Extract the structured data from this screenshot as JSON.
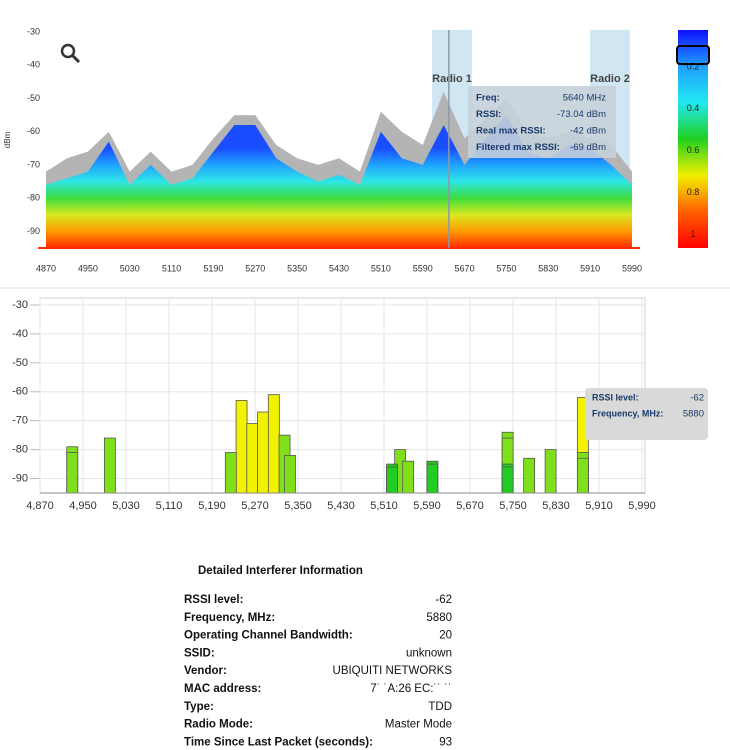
{
  "chart_data": [
    {
      "type": "area",
      "y_label": "dBm",
      "x": [
        4870,
        4910,
        4950,
        4990,
        5030,
        5070,
        5110,
        5150,
        5190,
        5230,
        5270,
        5310,
        5350,
        5390,
        5430,
        5470,
        5510,
        5550,
        5590,
        5630,
        5670,
        5710,
        5750,
        5790,
        5830,
        5870,
        5910,
        5950,
        5990
      ],
      "series": [
        {
          "color": "#b4b4b4",
          "values": [
            -72,
            -68,
            -66,
            -60,
            -72,
            -66,
            -72,
            -70,
            -62,
            -55,
            -55,
            -64,
            -68,
            -70,
            -68,
            -72,
            -54,
            -60,
            -64,
            -48,
            -62,
            -56,
            -50,
            -60,
            -62,
            -60,
            -62,
            -64,
            -72
          ]
        },
        {
          "colors": [
            "#1a4dff",
            "#1fa3ff",
            "#2ee6e6",
            "#3ddc3d",
            "#d8e820",
            "#ff9a00",
            "#ff2a00"
          ],
          "values": [
            -76,
            -74,
            -72,
            -63,
            -76,
            -70,
            -76,
            -74,
            -66,
            -58,
            -58,
            -68,
            -72,
            -75,
            -73,
            -76,
            -60,
            -68,
            -70,
            -58,
            -70,
            -62,
            -55,
            -66,
            -68,
            -64,
            -65,
            -70,
            -76
          ]
        }
      ],
      "xlim": [
        4870,
        5990
      ],
      "ylim": [
        -95,
        -30
      ],
      "xticks": [
        4870,
        4950,
        5030,
        5110,
        5190,
        5270,
        5350,
        5430,
        5510,
        5590,
        5670,
        5750,
        5830,
        5910,
        5990
      ],
      "yticks": [
        -30,
        -40,
        -50,
        -60,
        -70,
        -80,
        -90
      ],
      "bands": [
        {
          "label": "Radio 1",
          "range": [
            5608,
            5684
          ]
        },
        {
          "label": "Radio 2",
          "range": [
            5910,
            5986
          ]
        }
      ],
      "cursor": 5640,
      "tooltip": [
        [
          "Freq:",
          "5640 MHz"
        ],
        [
          "RSSI:",
          "-73.04 dBm"
        ],
        [
          "Real max RSSI:",
          "-42 dBm"
        ],
        [
          "Filtered max RSSI:",
          "-69 dBm"
        ]
      ],
      "colorbar": {
        "colors": [
          "#1010ff",
          "#20a0ff",
          "#20e8f0",
          "#20d020",
          "#f0f000",
          "#ff6000",
          "#ff0000"
        ],
        "lim": [
          0,
          1.04
        ],
        "ticks": [
          0.2,
          0.4,
          0.6,
          0.8,
          1
        ]
      }
    },
    {
      "type": "bar",
      "series": [
        {
          "color": "#f2f200",
          "x": [
            5245,
            5265,
            5285,
            5305,
            5880
          ],
          "values": [
            -63,
            -71,
            -67,
            -61,
            -62
          ]
        },
        {
          "color": "#7fe01a",
          "x": [
            4930,
            4930,
            5000,
            5225,
            5325,
            5335,
            5540,
            5555,
            5740,
            5740,
            5780,
            5820,
            5880,
            5880
          ],
          "values": [
            -79,
            -81,
            -76,
            -81,
            -75,
            -82,
            -80,
            -84,
            -74,
            -76,
            -83,
            -80,
            -81,
            -83
          ]
        },
        {
          "color": "#22cc22",
          "x": [
            5525,
            5525,
            5600,
            5600,
            5740,
            5740
          ],
          "values": [
            -85,
            -86,
            -84,
            -85,
            -85,
            -86
          ]
        }
      ],
      "xlim": [
        4870,
        5990
      ],
      "ylim": [
        -95,
        -30
      ],
      "xticks": [
        {
          "value": 4870,
          "label": "4,870"
        },
        {
          "value": 4950,
          "label": "4,950"
        },
        {
          "value": 5030,
          "label": "5,030"
        },
        {
          "value": 5110,
          "label": "5,110"
        },
        {
          "value": 5190,
          "label": "5,190"
        },
        {
          "value": 5270,
          "label": "5,270"
        },
        {
          "value": 5350,
          "label": "5,350"
        },
        {
          "value": 5430,
          "label": "5,430"
        },
        {
          "value": 5510,
          "label": "5,510"
        },
        {
          "value": 5590,
          "label": "5,590"
        },
        {
          "value": 5670,
          "label": "5,670"
        },
        {
          "value": 5750,
          "label": "5,750"
        },
        {
          "value": 5830,
          "label": "5,830"
        },
        {
          "value": 5910,
          "label": "5,910"
        },
        {
          "value": 5990,
          "label": "5,990"
        }
      ],
      "yticks": [
        -30,
        -40,
        -50,
        -60,
        -70,
        -80,
        -90
      ],
      "grid": true,
      "tooltip": [
        [
          "RSSI level:",
          "-62"
        ],
        [
          "Frequency, MHz:",
          "5880"
        ]
      ]
    }
  ],
  "details": {
    "title": "Detailed Interferer Information",
    "rows": [
      [
        "RSSI level:",
        "-62"
      ],
      [
        "Frequency, MHz:",
        "5880"
      ],
      [
        "Operating Channel Bandwidth:",
        "20"
      ],
      [
        "SSID:",
        "unknown"
      ],
      [
        "Vendor:",
        "UBIQUITI NETWORKS"
      ],
      [
        "MAC address:",
        "7˙ ˙A:26 EC:˙˙ ˙˙"
      ],
      [
        "Type:",
        "TDD"
      ],
      [
        "Radio Mode:",
        "Master Mode"
      ],
      [
        "Time Since Last Packet (seconds):",
        "93"
      ]
    ]
  }
}
